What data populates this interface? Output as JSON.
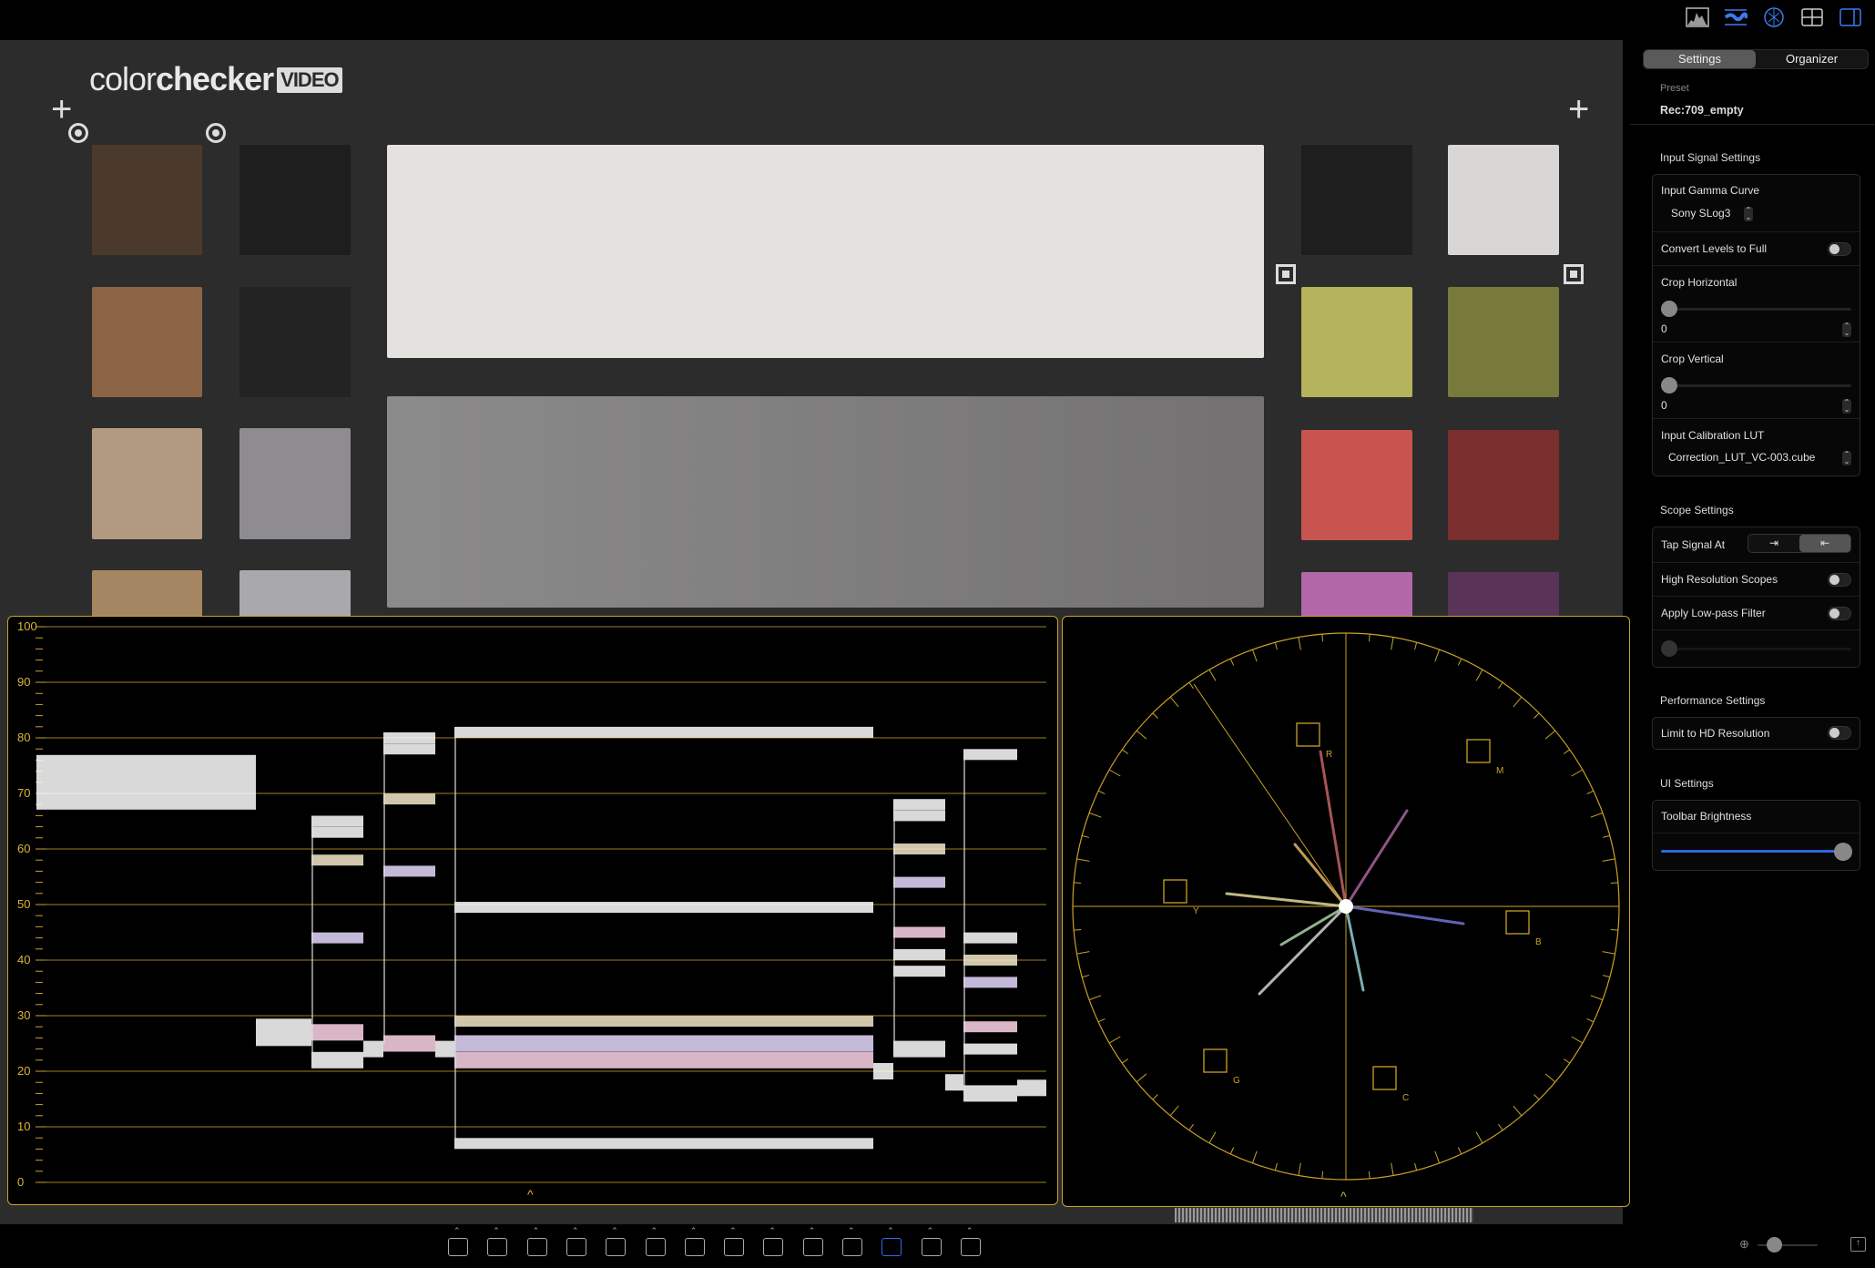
{
  "viewer": {
    "logo_text_light": "color",
    "logo_text_bold": "checker",
    "logo_badge": "VIDEO"
  },
  "top_toolbar": {
    "icons": [
      "histogram-icon",
      "waveform-icon",
      "vectorscope-icon",
      "grid-layout-icon",
      "sidebar-toggle-icon"
    ]
  },
  "sidebar": {
    "tabs": [
      {
        "label": "Settings",
        "active": true
      },
      {
        "label": "Organizer",
        "active": false
      }
    ],
    "preset_label": "Preset",
    "preset_value": "Rec:709_empty",
    "input_signal": {
      "title": "Input Signal Settings",
      "gamma_label": "Input Gamma Curve",
      "gamma_value": "Sony SLog3",
      "convert_label": "Convert Levels to Full",
      "convert_on": false,
      "crop_h_label": "Crop Horizontal",
      "crop_h_value": "0",
      "crop_v_label": "Crop Vertical",
      "crop_v_value": "0",
      "lut_label": "Input Calibration LUT",
      "lut_value": "Correction_LUT_VC-003.cube"
    },
    "scope": {
      "title": "Scope Settings",
      "tap_label": "Tap Signal At",
      "tap_selected": "output",
      "hires_label": "High Resolution Scopes",
      "hires_on": false,
      "lowpass_label": "Apply Low-pass Filter",
      "lowpass_on": false
    },
    "performance": {
      "title": "Performance Settings",
      "hd_label": "Limit to HD Resolution",
      "hd_on": false
    },
    "ui": {
      "title": "UI Settings",
      "brightness_label": "Toolbar Brightness",
      "brightness_value": 1.0
    }
  },
  "waveform": {
    "ticks": [
      "100",
      "90",
      "80",
      "70",
      "60",
      "50",
      "40",
      "30",
      "20",
      "10",
      "0"
    ],
    "accent": "#c9a227"
  },
  "vectorscope": {
    "targets": [
      "R",
      "M",
      "B",
      "C",
      "G",
      "Y"
    ]
  },
  "bottom_toolbar": {
    "icons": [
      "grid-overlay-icon",
      "crosshair-icon",
      "safe-area-icon",
      "layout-icon",
      "transform-icon",
      "flip-icon",
      "image-icon",
      "key-icon",
      "mask-icon",
      "false-color-icon",
      "exposure-icon",
      "3d-cube-icon",
      "palette-icon",
      "focus-icon"
    ],
    "active": "3d-cube-icon"
  }
}
